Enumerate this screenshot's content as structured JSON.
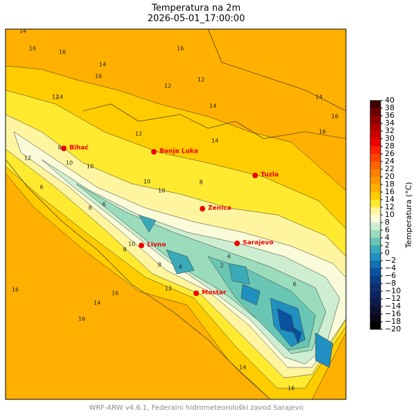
{
  "title": "Temperatura na 2m",
  "subtitle": "2026-05-01_17:00:00",
  "cities": [
    "Bihać",
    "Banja Luka",
    "Tuzla",
    "Zenica",
    "Sarajevo",
    "Livno",
    "Mostar"
  ],
  "contour_labels": [
    14,
    16,
    16,
    16,
    14,
    16,
    12,
    12,
    14,
    14,
    12,
    14,
    16,
    14,
    16,
    8,
    10,
    10,
    8,
    12,
    8,
    10,
    6,
    4,
    6,
    10,
    8,
    12,
    16,
    16,
    14,
    16,
    4,
    2,
    6,
    14,
    16,
    12,
    10,
    8
  ],
  "colorbar": {
    "label": "Temperatura (°C)",
    "ticks": [
      {
        "value": -20,
        "label": "−20"
      },
      {
        "value": -18,
        "label": "−18"
      },
      {
        "value": -16,
        "label": "−16"
      },
      {
        "value": -14,
        "label": "−14"
      },
      {
        "value": -12,
        "label": "−12"
      },
      {
        "value": -10,
        "label": "−10"
      },
      {
        "value": -8,
        "label": "−8"
      },
      {
        "value": -6,
        "label": "−6"
      },
      {
        "value": -4,
        "label": "−4"
      },
      {
        "value": -2,
        "label": "−2"
      },
      0,
      2,
      4,
      6,
      8,
      10,
      12,
      14,
      16,
      18,
      20,
      22,
      24,
      26,
      28,
      30,
      32,
      34,
      36,
      38,
      40
    ],
    "colors": [
      "#000000",
      "#080818",
      "#0a1230",
      "#0b1a48",
      "#0c2460",
      "#0d3070",
      "#0b3f88",
      "#0a52a0",
      "#1070b4",
      "#2090c0",
      "#3aaab8",
      "#6ac6b4",
      "#9adcbc",
      "#cdeed0",
      "#fafbd8",
      "#fff5a0",
      "#ffea30",
      "#ffcc00",
      "#ffb000",
      "#ff9800",
      "#ff8000",
      "#ff6400",
      "#ff4400",
      "#ff2000",
      "#f00000",
      "#d00000",
      "#b00000",
      "#900000",
      "#700000",
      "#400000"
    ]
  },
  "footer": "WRF-ARW v4.6.1, Federalni hidrometeorološki zavod Sarajevo"
}
